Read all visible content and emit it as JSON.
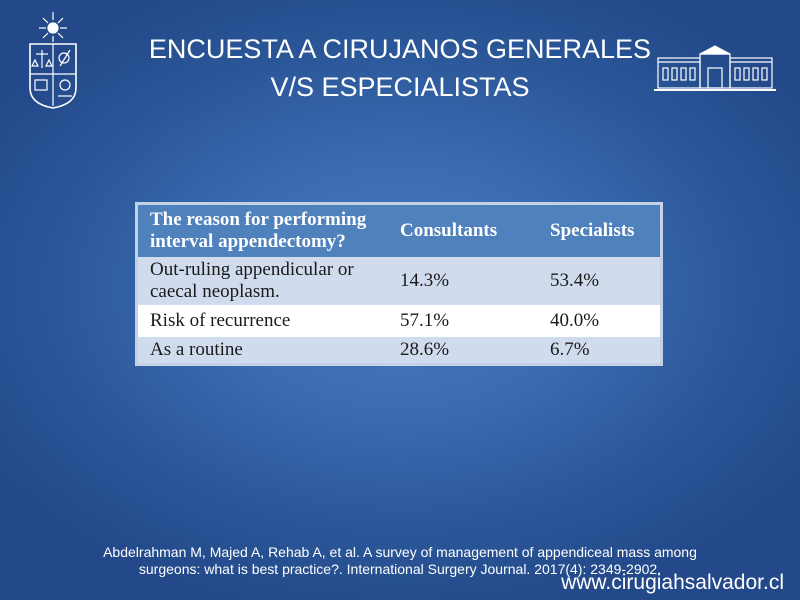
{
  "slide": {
    "title_line1": "ENCUESTA A CIRUJANOS GENERALES",
    "title_line2": "V/S ESPECIALISTAS"
  },
  "table": {
    "headers": [
      "The reason for performing interval appendectomy?",
      "Consultants",
      "Specialists"
    ],
    "rows": [
      {
        "reason": "Out-ruling appendicular or caecal neoplasm.",
        "consultants": "14.3%",
        "specialists": "53.4%"
      },
      {
        "reason": "Risk of recurrence",
        "consultants": "57.1%",
        "specialists": "40.0%"
      },
      {
        "reason": "As a routine",
        "consultants": "28.6%",
        "specialists": "6.7%"
      }
    ]
  },
  "citation": {
    "line1": "Abdelrahman M, Majed A, Rehab A, et al. A survey of management of appendiceal mass among",
    "line2": "surgeons: what is best practice?. International Surgery Journal. 2017(4): 2349-2902."
  },
  "website": "www.cirugiahsalvador.cl",
  "colors": {
    "background": "#2f5fa3",
    "header_fill": "#4f81bd",
    "row_shaded": "#d0dbed",
    "row_white": "#ffffff"
  },
  "icons": {
    "left_logo": "university-crest-icon",
    "right_logo": "hospital-building-icon"
  }
}
